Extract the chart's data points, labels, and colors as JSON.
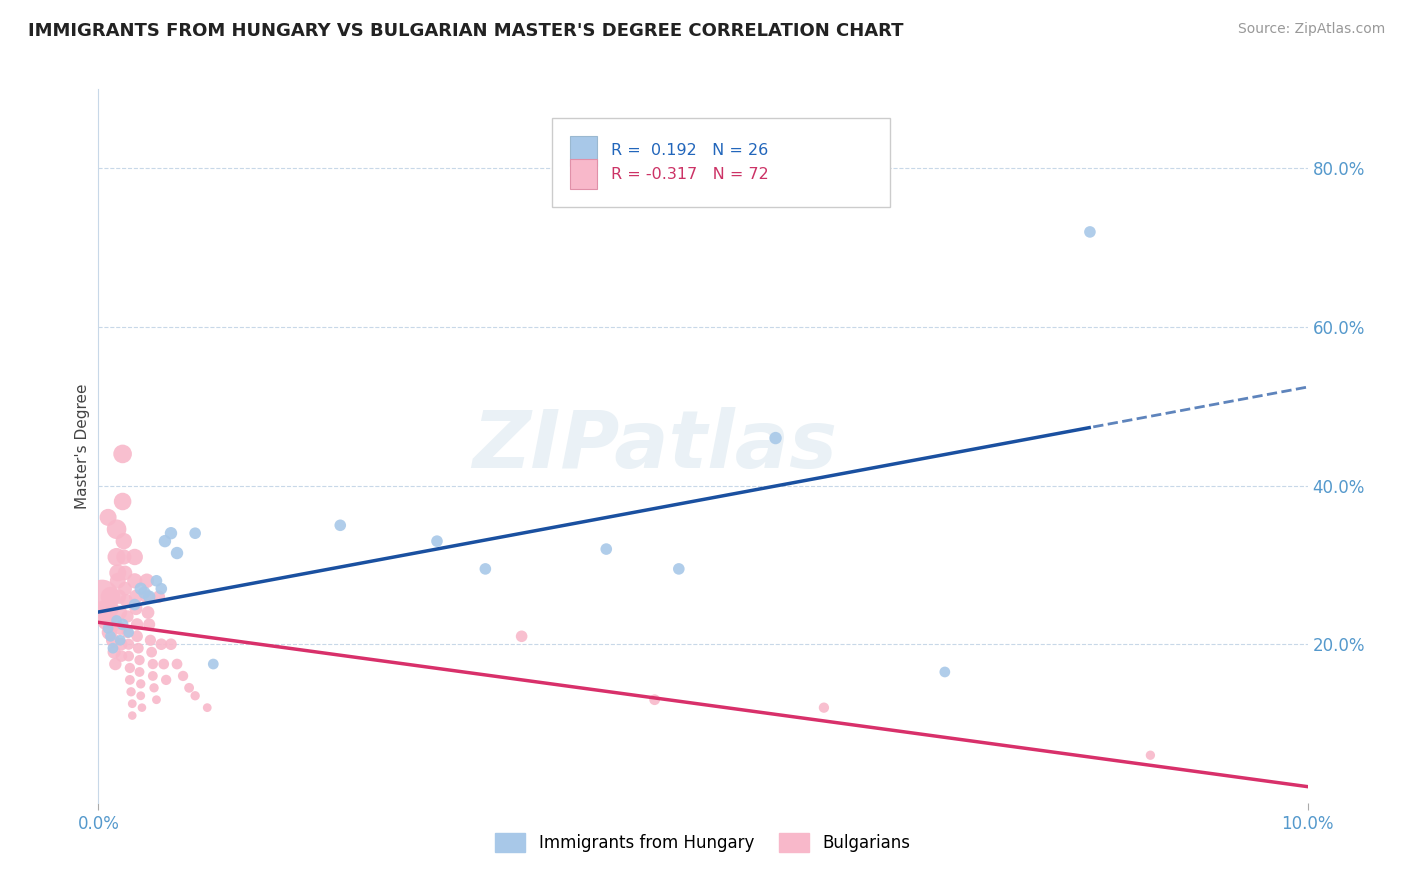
{
  "title": "IMMIGRANTS FROM HUNGARY VS BULGARIAN MASTER'S DEGREE CORRELATION CHART",
  "source": "Source: ZipAtlas.com",
  "ylabel": "Master's Degree",
  "xlim": [
    0.0,
    0.1
  ],
  "ylim": [
    0.0,
    0.9
  ],
  "ytick_labels_right": [
    "20.0%",
    "40.0%",
    "60.0%",
    "80.0%"
  ],
  "ytick_positions_right": [
    0.2,
    0.4,
    0.6,
    0.8
  ],
  "color_hungary": "#a8c8e8",
  "color_bulgarian": "#f8b8ca",
  "line_color_hungary": "#1a50a0",
  "line_color_bulgarian": "#d8306a",
  "watermark": "ZIPatlas",
  "hungary_points": [
    [
      0.0008,
      0.22
    ],
    [
      0.001,
      0.21
    ],
    [
      0.0012,
      0.195
    ],
    [
      0.0015,
      0.23
    ],
    [
      0.0018,
      0.205
    ],
    [
      0.002,
      0.225
    ],
    [
      0.0025,
      0.215
    ],
    [
      0.003,
      0.25
    ],
    [
      0.0035,
      0.27
    ],
    [
      0.0038,
      0.265
    ],
    [
      0.0042,
      0.26
    ],
    [
      0.0048,
      0.28
    ],
    [
      0.0052,
      0.27
    ],
    [
      0.0055,
      0.33
    ],
    [
      0.006,
      0.34
    ],
    [
      0.0065,
      0.315
    ],
    [
      0.008,
      0.34
    ],
    [
      0.0095,
      0.175
    ],
    [
      0.02,
      0.35
    ],
    [
      0.028,
      0.33
    ],
    [
      0.032,
      0.295
    ],
    [
      0.042,
      0.32
    ],
    [
      0.048,
      0.295
    ],
    [
      0.056,
      0.46
    ],
    [
      0.07,
      0.165
    ],
    [
      0.082,
      0.72
    ]
  ],
  "hungary_sizes": [
    60,
    60,
    60,
    60,
    60,
    70,
    60,
    70,
    80,
    80,
    80,
    70,
    70,
    80,
    80,
    80,
    70,
    60,
    70,
    70,
    70,
    70,
    70,
    80,
    60,
    70
  ],
  "bulgarian_points": [
    [
      0.0003,
      0.26
    ],
    [
      0.0005,
      0.24
    ],
    [
      0.0007,
      0.23
    ],
    [
      0.0008,
      0.36
    ],
    [
      0.0009,
      0.215
    ],
    [
      0.001,
      0.26
    ],
    [
      0.001,
      0.245
    ],
    [
      0.0012,
      0.225
    ],
    [
      0.0012,
      0.205
    ],
    [
      0.0013,
      0.19
    ],
    [
      0.0014,
      0.175
    ],
    [
      0.0015,
      0.345
    ],
    [
      0.0015,
      0.31
    ],
    [
      0.0016,
      0.29
    ],
    [
      0.0016,
      0.28
    ],
    [
      0.0017,
      0.26
    ],
    [
      0.0018,
      0.24
    ],
    [
      0.0018,
      0.22
    ],
    [
      0.0019,
      0.2
    ],
    [
      0.0019,
      0.185
    ],
    [
      0.002,
      0.44
    ],
    [
      0.002,
      0.38
    ],
    [
      0.0021,
      0.33
    ],
    [
      0.0021,
      0.31
    ],
    [
      0.0022,
      0.29
    ],
    [
      0.0022,
      0.27
    ],
    [
      0.0023,
      0.255
    ],
    [
      0.0024,
      0.235
    ],
    [
      0.0024,
      0.215
    ],
    [
      0.0025,
      0.2
    ],
    [
      0.0025,
      0.185
    ],
    [
      0.0026,
      0.17
    ],
    [
      0.0026,
      0.155
    ],
    [
      0.0027,
      0.14
    ],
    [
      0.0028,
      0.125
    ],
    [
      0.0028,
      0.11
    ],
    [
      0.003,
      0.31
    ],
    [
      0.003,
      0.28
    ],
    [
      0.0031,
      0.26
    ],
    [
      0.0031,
      0.245
    ],
    [
      0.0032,
      0.225
    ],
    [
      0.0032,
      0.21
    ],
    [
      0.0033,
      0.195
    ],
    [
      0.0034,
      0.18
    ],
    [
      0.0034,
      0.165
    ],
    [
      0.0035,
      0.15
    ],
    [
      0.0035,
      0.135
    ],
    [
      0.0036,
      0.12
    ],
    [
      0.004,
      0.28
    ],
    [
      0.004,
      0.26
    ],
    [
      0.0041,
      0.24
    ],
    [
      0.0042,
      0.225
    ],
    [
      0.0043,
      0.205
    ],
    [
      0.0044,
      0.19
    ],
    [
      0.0045,
      0.175
    ],
    [
      0.0045,
      0.16
    ],
    [
      0.0046,
      0.145
    ],
    [
      0.0048,
      0.13
    ],
    [
      0.005,
      0.26
    ],
    [
      0.0052,
      0.2
    ],
    [
      0.0054,
      0.175
    ],
    [
      0.0056,
      0.155
    ],
    [
      0.006,
      0.2
    ],
    [
      0.0065,
      0.175
    ],
    [
      0.007,
      0.16
    ],
    [
      0.0075,
      0.145
    ],
    [
      0.008,
      0.135
    ],
    [
      0.009,
      0.12
    ],
    [
      0.035,
      0.21
    ],
    [
      0.046,
      0.13
    ],
    [
      0.06,
      0.12
    ],
    [
      0.087,
      0.06
    ]
  ],
  "bulgarian_sizes": [
    600,
    300,
    200,
    150,
    120,
    200,
    150,
    120,
    100,
    90,
    80,
    200,
    170,
    150,
    130,
    110,
    100,
    90,
    80,
    70,
    180,
    160,
    140,
    120,
    110,
    100,
    90,
    80,
    70,
    65,
    60,
    55,
    50,
    45,
    40,
    38,
    140,
    120,
    100,
    90,
    80,
    70,
    60,
    55,
    50,
    45,
    40,
    38,
    110,
    95,
    85,
    75,
    65,
    60,
    55,
    50,
    45,
    40,
    80,
    70,
    60,
    55,
    70,
    60,
    55,
    50,
    45,
    40,
    70,
    60,
    55,
    45
  ]
}
